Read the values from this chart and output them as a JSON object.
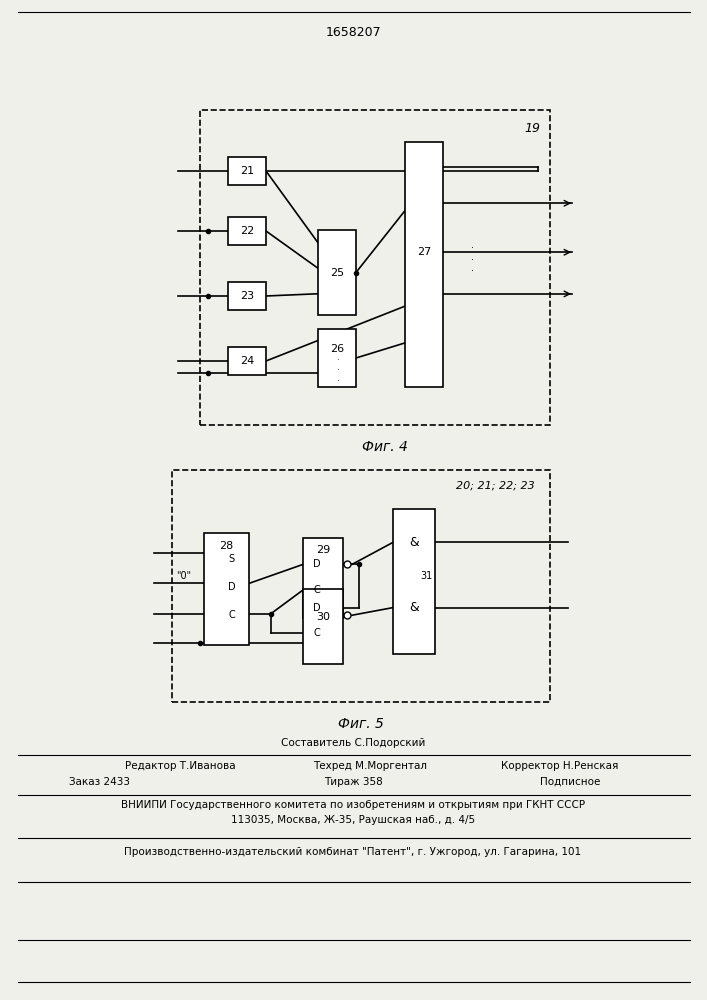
{
  "title": "1658207",
  "fig4_label": "Фиг. 4",
  "fig5_label": "Фиг. 5",
  "bg_color": "#f0f0eb"
}
